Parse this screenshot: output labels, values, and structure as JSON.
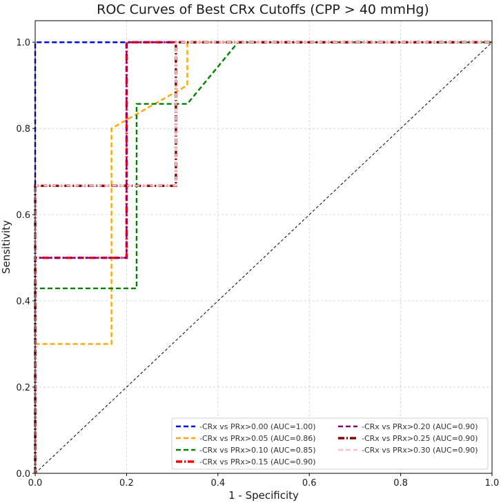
{
  "chart_data": {
    "type": "line",
    "title": "ROC Curves of Best CRx Cutoffs (CPP > 40 mmHg)",
    "xlabel": "1 - Specificity",
    "ylabel": "Sensitivity",
    "xlim": [
      0,
      1
    ],
    "ylim": [
      0,
      1.05
    ],
    "xticks": [
      "0.0",
      "0.2",
      "0.4",
      "0.6",
      "0.8",
      "1.0"
    ],
    "yticks": [
      "0.0",
      "0.2",
      "0.4",
      "0.6",
      "0.8",
      "1.0"
    ],
    "grid": true,
    "legend_position": "bottom-right",
    "series": [
      {
        "name": "-CRx vs PRx>0.00 (AUC=1.00)",
        "color": "#0000ff",
        "style": "dashed",
        "x": [
          0,
          0,
          0,
          1
        ],
        "y": [
          0,
          1,
          1,
          1
        ]
      },
      {
        "name": "-CRx vs PRx>0.05 (AUC=0.86)",
        "color": "#ffa500",
        "style": "dashed",
        "x": [
          0,
          0,
          0.167,
          0.167,
          0.333,
          0.333,
          1
        ],
        "y": [
          0,
          0.3,
          0.3,
          0.8,
          0.9,
          1,
          1
        ]
      },
      {
        "name": "-CRx vs PRx>0.10 (AUC=0.85)",
        "color": "#008000",
        "style": "dashed",
        "x": [
          0,
          0,
          0.222,
          0.222,
          0.333,
          0.444,
          1
        ],
        "y": [
          0,
          0.429,
          0.429,
          0.857,
          0.857,
          1,
          1
        ]
      },
      {
        "name": "-CRx vs PRx>0.15 (AUC=0.90)",
        "color": "#ff0000",
        "style": "dashdot",
        "x": [
          0,
          0,
          0.2,
          0.2,
          1
        ],
        "y": [
          0,
          0.5,
          0.5,
          1,
          1
        ]
      },
      {
        "name": "-CRx vs PRx>0.20 (AUC=0.90)",
        "color": "#800080",
        "style": "dashed",
        "x": [
          0,
          0,
          0.2,
          0.2,
          1
        ],
        "y": [
          0,
          0.5,
          0.5,
          1,
          1
        ]
      },
      {
        "name": "-CRx vs PRx>0.25 (AUC=0.90)",
        "color": "#8b0000",
        "style": "dashdot",
        "x": [
          0,
          0,
          0.308,
          0.308,
          1
        ],
        "y": [
          0,
          0.667,
          0.667,
          1,
          1
        ]
      },
      {
        "name": "-CRx vs PRx>0.30 (AUC=0.90)",
        "color": "#ffc0cb",
        "style": "dashed",
        "x": [
          0,
          0,
          0.308,
          0.308,
          1
        ],
        "y": [
          0,
          0.667,
          0.667,
          1,
          1
        ]
      }
    ],
    "reference_line": {
      "color": "#000000",
      "style": "dashed",
      "x": [
        0,
        1
      ],
      "y": [
        0,
        1
      ]
    }
  }
}
